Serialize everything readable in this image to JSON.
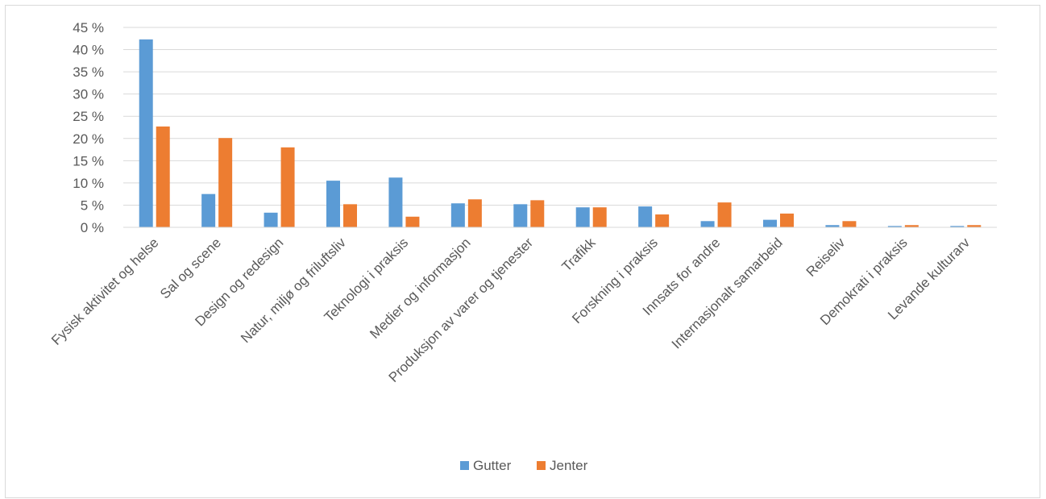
{
  "chart_data": {
    "type": "bar",
    "title": "",
    "xlabel": "",
    "ylabel": "",
    "ylim": [
      0,
      45
    ],
    "y_ticks": [
      "0 %",
      "5 %",
      "10 %",
      "15 %",
      "20 %",
      "25 %",
      "30 %",
      "35 %",
      "40 %",
      "45 %"
    ],
    "grid": true,
    "legend_position": "bottom",
    "categories": [
      "Fysisk aktivitet og helse",
      "Sal og scene",
      "Design og redesign",
      "Natur, miljø og friluftsliv",
      "Teknologi i praksis",
      "Medier og informasjon",
      "Produksjon av varer og tjenester",
      "Trafikk",
      "Forskning i praksis",
      "Innsats for andre",
      "Internasjonalt samarbeid",
      "Reiseliv",
      "Demokrati i praksis",
      "Levande kulturarv"
    ],
    "series": [
      {
        "name": "Gutter",
        "color": "#5b9bd5",
        "values": [
          42.3,
          7.5,
          3.3,
          10.5,
          11.2,
          5.4,
          5.2,
          4.5,
          4.7,
          1.4,
          1.7,
          0.5,
          0.3,
          0.3
        ]
      },
      {
        "name": "Jenter",
        "color": "#ed7d31",
        "values": [
          22.7,
          20.1,
          18.0,
          5.2,
          2.4,
          6.3,
          6.1,
          4.5,
          2.9,
          5.6,
          3.1,
          1.4,
          0.5,
          0.5
        ]
      }
    ]
  }
}
